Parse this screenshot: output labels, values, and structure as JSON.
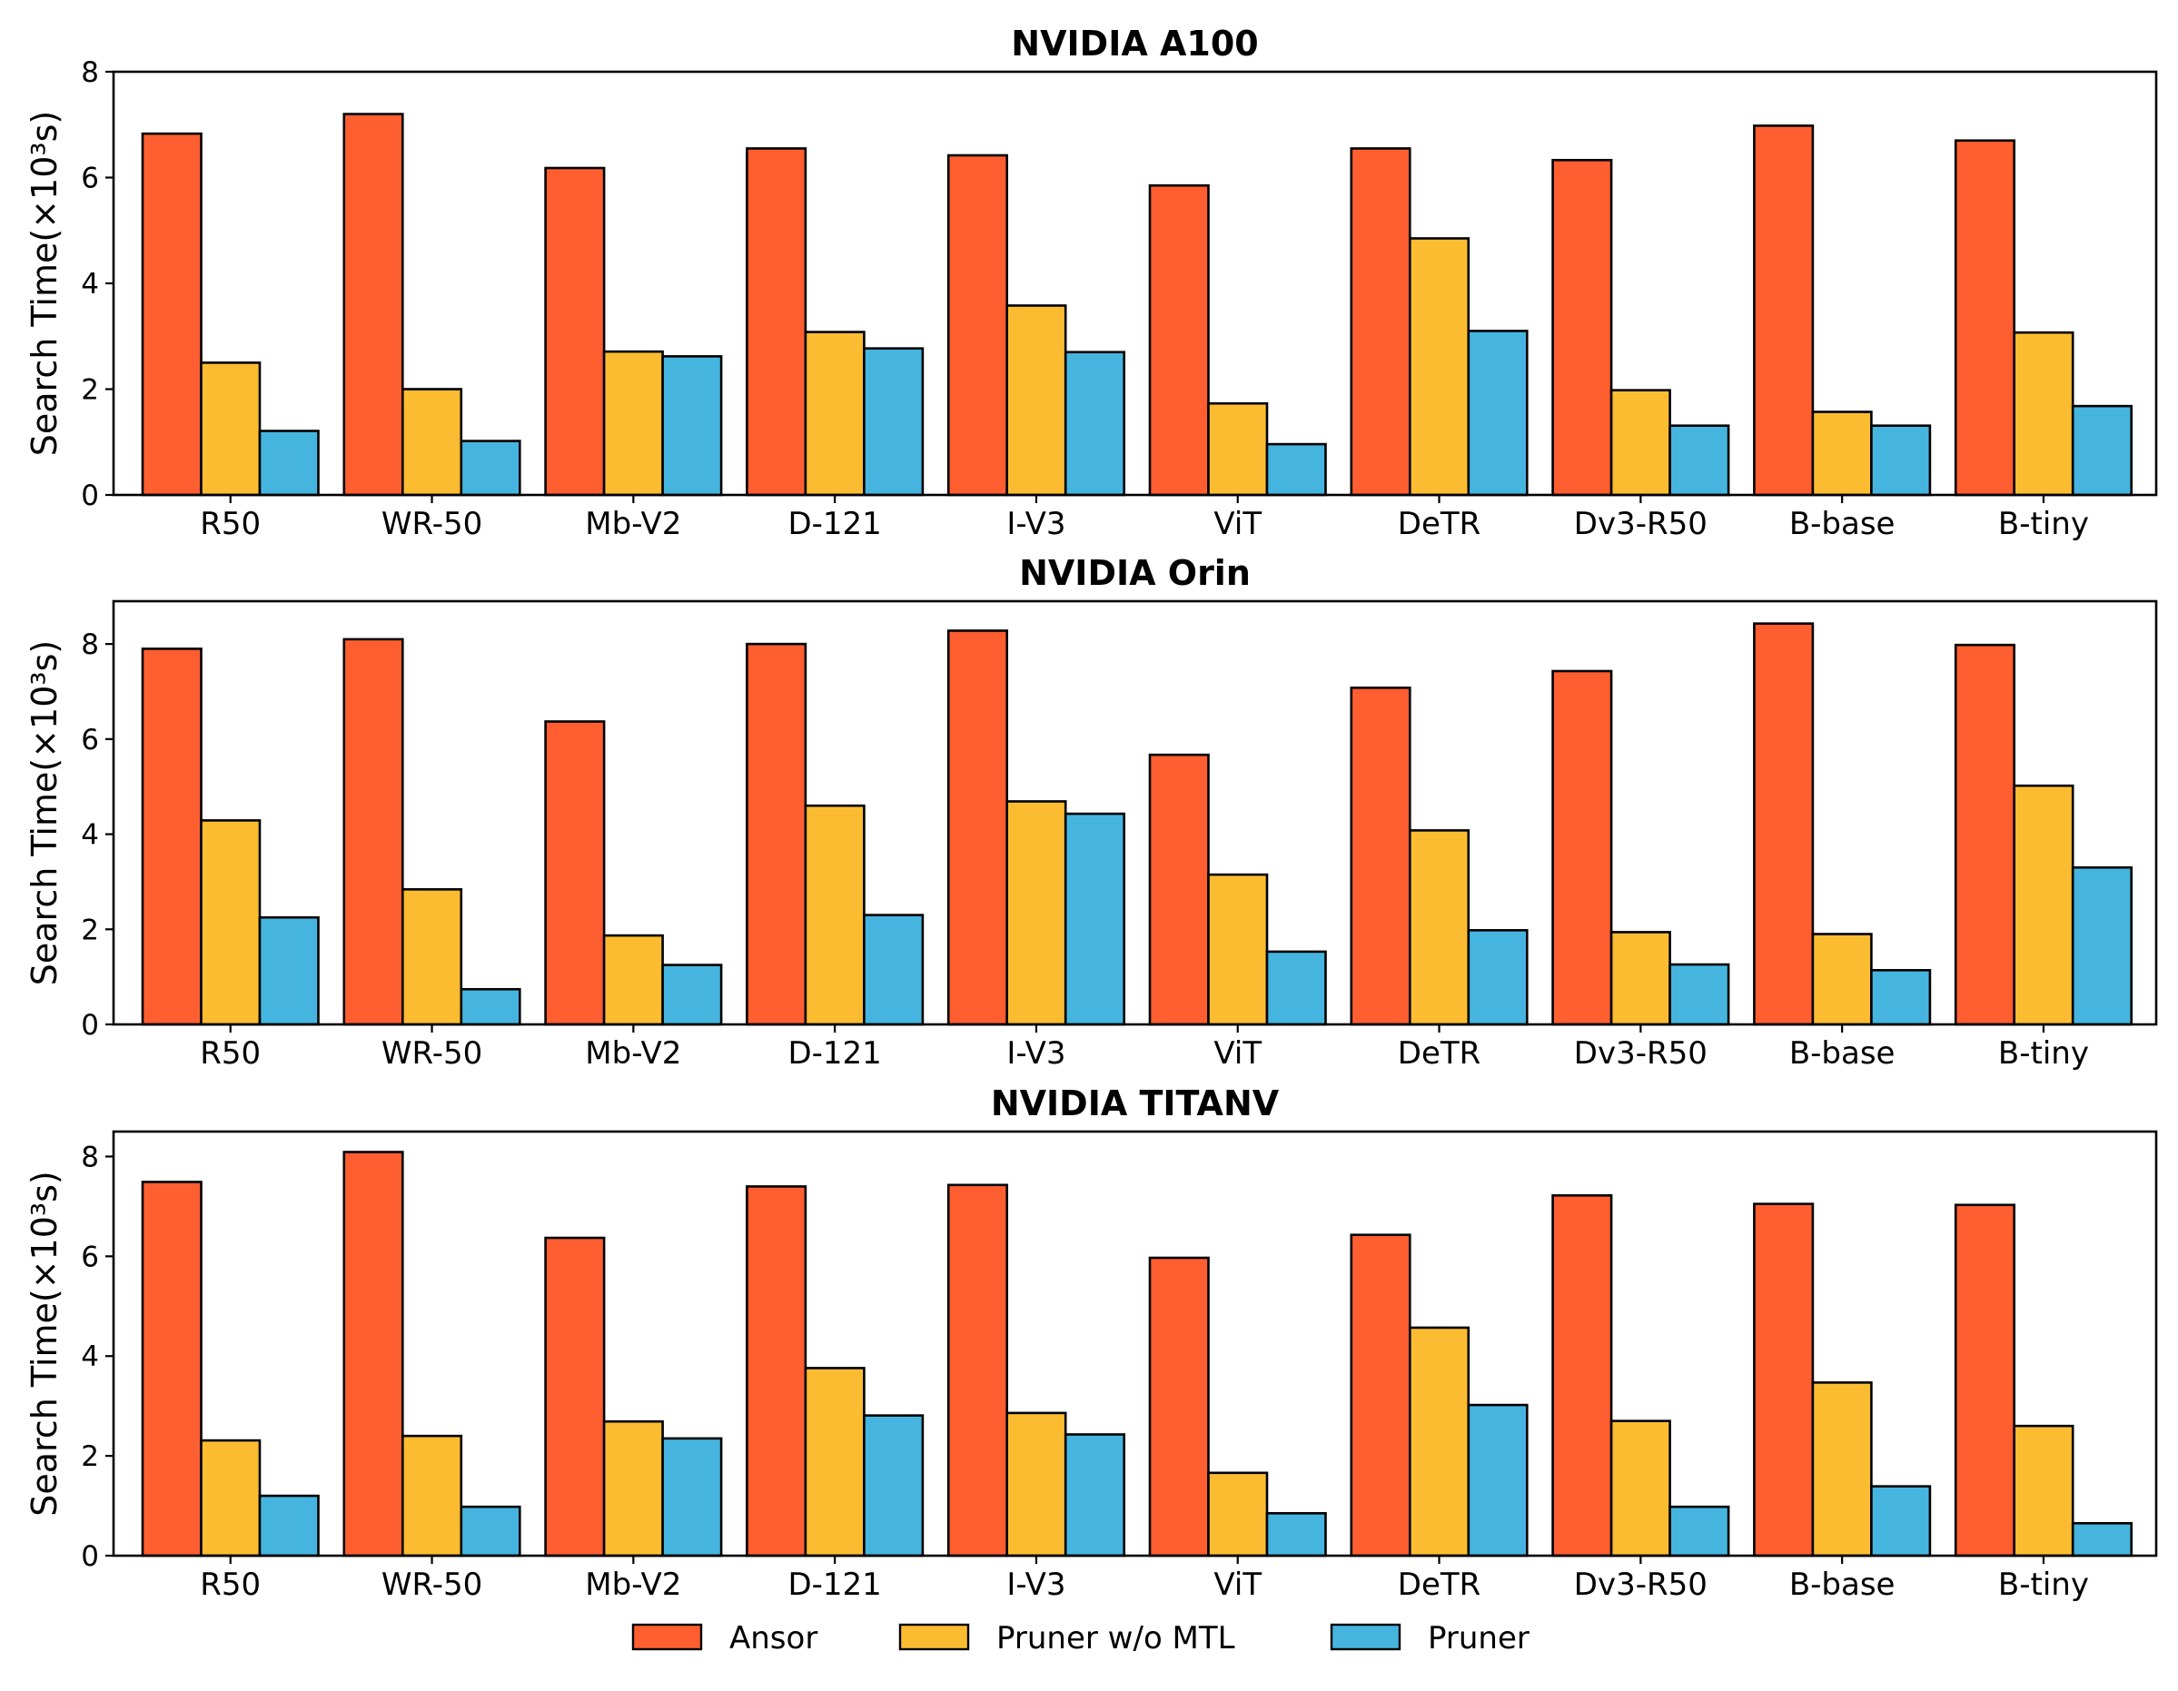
{
  "legend": [
    {
      "name": "Ansor",
      "color": "#FF5E30"
    },
    {
      "name": "Pruner w/o MTL",
      "color": "#FBBC32"
    },
    {
      "name": "Pruner",
      "color": "#45B5DF"
    }
  ],
  "chart_data": [
    {
      "type": "bar",
      "title": "NVIDIA A100",
      "ylabel": "Search Time(×10³s)",
      "ylim": [
        0,
        8
      ],
      "yticks": [
        0,
        2,
        4,
        6,
        8
      ],
      "grid": false,
      "legend_position": "bottom-center",
      "categories": [
        "R50",
        "WR-50",
        "Mb-V2",
        "D-121",
        "I-V3",
        "ViT",
        "DeTR",
        "Dv3-R50",
        "B-base",
        "B-tiny"
      ],
      "series": [
        {
          "name": "Ansor",
          "values": [
            6.83,
            7.2,
            6.18,
            6.55,
            6.42,
            5.85,
            6.55,
            6.33,
            6.98,
            6.7
          ]
        },
        {
          "name": "Pruner w/o MTL",
          "values": [
            2.5,
            2.0,
            2.71,
            3.08,
            3.58,
            1.73,
            4.85,
            1.98,
            1.57,
            3.07
          ]
        },
        {
          "name": "Pruner",
          "values": [
            1.21,
            1.02,
            2.62,
            2.77,
            2.7,
            0.96,
            3.1,
            1.31,
            1.31,
            1.68
          ]
        }
      ]
    },
    {
      "type": "bar",
      "title": "NVIDIA Orin",
      "ylabel": "Search Time(×10³s)",
      "ylim": [
        0,
        8.9
      ],
      "yticks": [
        0,
        2,
        4,
        6,
        8
      ],
      "grid": false,
      "legend_position": "bottom-center",
      "categories": [
        "R50",
        "WR-50",
        "Mb-V2",
        "D-121",
        "I-V3",
        "ViT",
        "DeTR",
        "Dv3-R50",
        "B-base",
        "B-tiny"
      ],
      "series": [
        {
          "name": "Ansor",
          "values": [
            7.9,
            8.1,
            6.37,
            8.0,
            8.28,
            5.67,
            7.08,
            7.43,
            8.43,
            7.98
          ]
        },
        {
          "name": "Pruner w/o MTL",
          "values": [
            4.29,
            2.84,
            1.87,
            4.6,
            4.69,
            3.15,
            4.08,
            1.94,
            1.9,
            5.02
          ]
        },
        {
          "name": "Pruner",
          "values": [
            2.25,
            0.74,
            1.25,
            2.3,
            4.43,
            1.53,
            1.98,
            1.26,
            1.14,
            3.3
          ]
        }
      ]
    },
    {
      "type": "bar",
      "title": "NVIDIA TITANV",
      "ylabel": "Search Time(×10³s)",
      "ylim": [
        0,
        8.5
      ],
      "yticks": [
        0,
        2,
        4,
        6,
        8
      ],
      "grid": false,
      "legend_position": "bottom-center",
      "categories": [
        "R50",
        "WR-50",
        "Mb-V2",
        "D-121",
        "I-V3",
        "ViT",
        "DeTR",
        "Dv3-R50",
        "B-base",
        "B-tiny"
      ],
      "series": [
        {
          "name": "Ansor",
          "values": [
            7.49,
            8.09,
            6.37,
            7.4,
            7.43,
            5.97,
            6.43,
            7.22,
            7.05,
            7.03
          ]
        },
        {
          "name": "Pruner w/o MTL",
          "values": [
            2.31,
            2.4,
            2.69,
            3.76,
            2.86,
            1.66,
            4.57,
            2.7,
            3.47,
            2.6
          ]
        },
        {
          "name": "Pruner",
          "values": [
            1.2,
            0.98,
            2.35,
            2.81,
            2.43,
            0.85,
            3.02,
            0.98,
            1.39,
            0.65
          ]
        }
      ]
    }
  ]
}
